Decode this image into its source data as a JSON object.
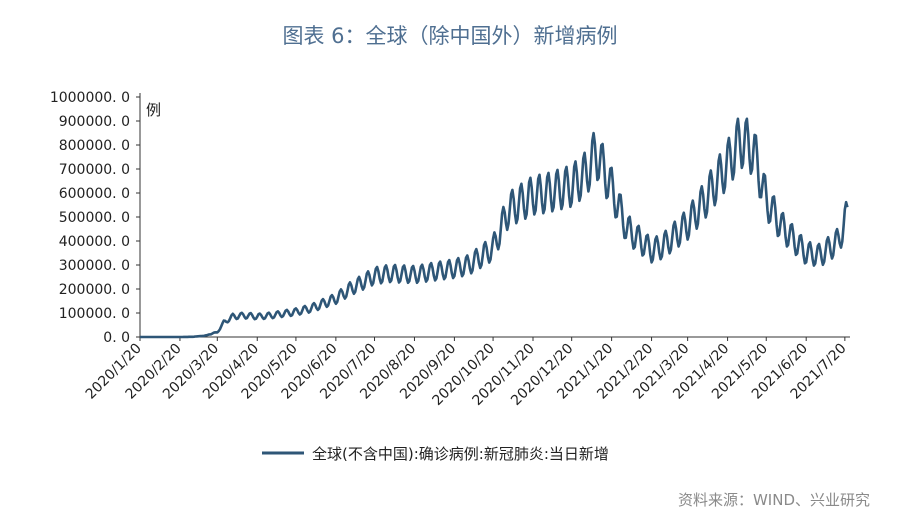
{
  "title": "图表 6：全球（除中国外）新增病例",
  "source": "资料来源：WIND、兴业研究",
  "chart_data": {
    "type": "line",
    "title": "图表 6：全球（除中国外）新增病例",
    "ylabel": "例",
    "xlabel": "",
    "ylim": [
      0,
      1000000
    ],
    "yticks": [
      "0. 0",
      "100000. 0",
      "200000. 0",
      "300000. 0",
      "400000. 0",
      "500000. 0",
      "600000. 0",
      "700000. 0",
      "800000. 0",
      "900000. 0",
      "1000000. 0"
    ],
    "xticks": [
      "2020/1/20",
      "2020/2/20",
      "2020/3/20",
      "2020/4/20",
      "2020/5/20",
      "2020/6/20",
      "2020/7/20",
      "2020/8/20",
      "2020/9/20",
      "2020/10/20",
      "2020/11/20",
      "2020/12/20",
      "2021/1/20",
      "2021/2/20",
      "2021/3/20",
      "2021/4/20",
      "2021/5/20",
      "2021/6/20",
      "2021/7/20"
    ],
    "grid": false,
    "legend_position": "bottom",
    "series": [
      {
        "name": "全球(不含中国):确诊病例:新冠肺炎:当日新增",
        "color": "#2e5677",
        "x": [
          "2020/1/20",
          "2020/2/20",
          "2020/3/1",
          "2020/3/10",
          "2020/3/20",
          "2020/3/25",
          "2020/4/1",
          "2020/4/10",
          "2020/4/20",
          "2020/5/1",
          "2020/5/20",
          "2020/6/1",
          "2020/6/20",
          "2020/7/1",
          "2020/7/20",
          "2020/8/1",
          "2020/8/20",
          "2020/9/1",
          "2020/9/20",
          "2020/10/1",
          "2020/10/20",
          "2020/11/1",
          "2020/11/20",
          "2020/12/1",
          "2020/12/20",
          "2020/12/31",
          "2021/1/8",
          "2021/1/20",
          "2021/2/1",
          "2021/2/20",
          "2021/3/1",
          "2021/3/20",
          "2021/4/1",
          "2021/4/20",
          "2021/4/30",
          "2021/5/10",
          "2021/5/20",
          "2021/6/1",
          "2021/6/20",
          "2021/7/1",
          "2021/7/15",
          "2021/7/22"
        ],
        "values": [
          0,
          0,
          1000,
          5000,
          20000,
          60000,
          85000,
          90000,
          85000,
          90000,
          105000,
          120000,
          160000,
          200000,
          255000,
          265000,
          260000,
          270000,
          285000,
          300000,
          370000,
          530000,
          590000,
          600000,
          630000,
          680000,
          770000,
          620000,
          450000,
          360000,
          380000,
          470000,
          560000,
          720000,
          820000,
          780000,
          570000,
          460000,
          350000,
          340000,
          400000,
          510000
        ]
      }
    ]
  }
}
